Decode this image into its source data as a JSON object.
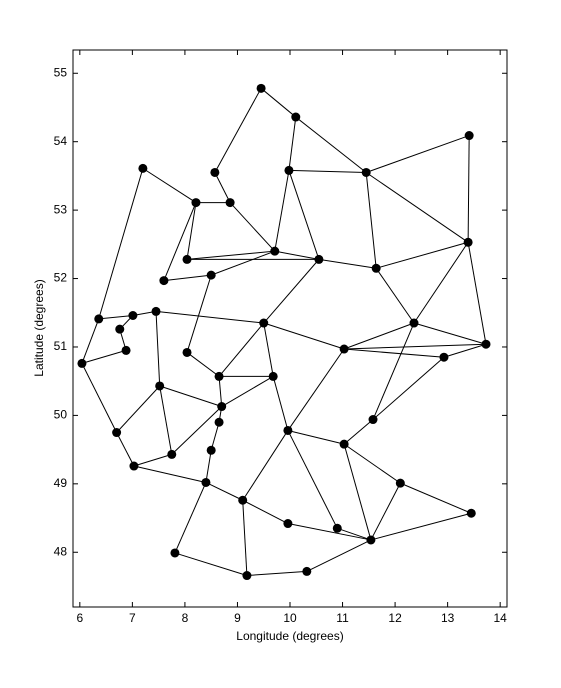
{
  "chart_data": {
    "type": "network",
    "xlabel": "Longitude (degrees)",
    "ylabel": "Latitude (degrees)",
    "x": [
      9.45,
      10.11,
      13.41,
      7.2,
      8.57,
      9.98,
      11.45,
      8.21,
      8.86,
      13.39,
      9.71,
      8.04,
      10.55,
      11.64,
      7.6,
      8.5,
      6.36,
      7.01,
      7.45,
      9.5,
      12.36,
      6.76,
      6.04,
      6.88,
      8.04,
      11.03,
      13.73,
      12.93,
      7.52,
      8.65,
      9.68,
      8.7,
      11.58,
      8.65,
      6.7,
      9.96,
      11.03,
      8.5,
      7.75,
      7.03,
      8.4,
      12.1,
      9.1,
      13.45,
      9.96,
      10.9,
      11.54,
      7.81,
      9.18,
      10.32
    ],
    "values": [
      54.78,
      54.36,
      54.09,
      53.61,
      53.55,
      53.58,
      53.55,
      53.11,
      53.11,
      52.53,
      52.4,
      52.28,
      52.28,
      52.15,
      51.97,
      52.05,
      51.41,
      51.46,
      51.52,
      51.35,
      51.35,
      51.26,
      50.76,
      50.95,
      50.92,
      50.97,
      51.04,
      50.85,
      50.43,
      50.57,
      50.57,
      50.13,
      49.94,
      49.9,
      49.75,
      49.78,
      49.58,
      49.49,
      49.43,
      49.26,
      49.02,
      49.01,
      48.76,
      48.57,
      48.42,
      48.35,
      48.18,
      47.99,
      47.66,
      47.72
    ],
    "edges": [
      [
        0,
        4
      ],
      [
        0,
        1
      ],
      [
        1,
        5
      ],
      [
        1,
        6
      ],
      [
        5,
        6
      ],
      [
        6,
        2
      ],
      [
        2,
        9
      ],
      [
        6,
        9
      ],
      [
        6,
        13
      ],
      [
        5,
        10
      ],
      [
        5,
        12
      ],
      [
        8,
        4
      ],
      [
        8,
        10
      ],
      [
        7,
        8
      ],
      [
        3,
        7
      ],
      [
        3,
        16
      ],
      [
        7,
        11
      ],
      [
        7,
        14
      ],
      [
        11,
        10
      ],
      [
        14,
        15
      ],
      [
        15,
        10
      ],
      [
        11,
        12
      ],
      [
        10,
        12
      ],
      [
        12,
        13
      ],
      [
        13,
        9
      ],
      [
        9,
        26
      ],
      [
        9,
        20
      ],
      [
        13,
        20
      ],
      [
        20,
        26
      ],
      [
        20,
        25
      ],
      [
        25,
        26
      ],
      [
        25,
        27
      ],
      [
        26,
        27
      ],
      [
        20,
        32
      ],
      [
        32,
        27
      ],
      [
        12,
        19
      ],
      [
        19,
        25
      ],
      [
        19,
        29
      ],
      [
        19,
        30
      ],
      [
        18,
        19
      ],
      [
        15,
        24
      ],
      [
        16,
        17
      ],
      [
        17,
        18
      ],
      [
        16,
        22
      ],
      [
        17,
        21
      ],
      [
        21,
        23
      ],
      [
        18,
        28
      ],
      [
        22,
        23
      ],
      [
        22,
        34
      ],
      [
        34,
        39
      ],
      [
        34,
        28
      ],
      [
        28,
        31
      ],
      [
        28,
        38
      ],
      [
        24,
        29
      ],
      [
        29,
        30
      ],
      [
        30,
        35
      ],
      [
        29,
        31
      ],
      [
        31,
        33
      ],
      [
        33,
        37
      ],
      [
        30,
        31
      ],
      [
        35,
        25
      ],
      [
        35,
        36
      ],
      [
        35,
        45
      ],
      [
        35,
        42
      ],
      [
        36,
        46
      ],
      [
        36,
        32
      ],
      [
        36,
        41
      ],
      [
        41,
        43
      ],
      [
        41,
        46
      ],
      [
        46,
        43
      ],
      [
        46,
        44
      ],
      [
        44,
        42
      ],
      [
        42,
        40
      ],
      [
        42,
        48
      ],
      [
        40,
        37
      ],
      [
        39,
        40
      ],
      [
        38,
        39
      ],
      [
        40,
        47
      ],
      [
        47,
        48
      ],
      [
        48,
        49
      ],
      [
        49,
        46
      ],
      [
        38,
        31
      ],
      [
        45,
        46
      ]
    ],
    "color": "#000000",
    "xlim": [
      5.87,
      14.13
    ],
    "ylim": [
      47.2,
      55.34
    ],
    "xticks": [
      6,
      7,
      8,
      9,
      10,
      11,
      12,
      13,
      14
    ],
    "yticks": [
      48,
      49,
      50,
      51,
      52,
      53,
      54,
      55
    ]
  }
}
